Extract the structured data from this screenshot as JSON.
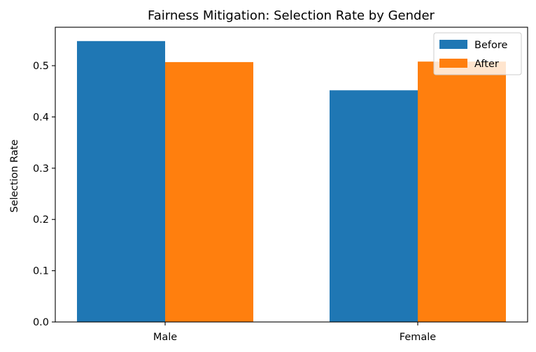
{
  "chart_data": {
    "type": "bar",
    "title": "Fairness Mitigation: Selection Rate by Gender",
    "xlabel": "",
    "ylabel": "Selection Rate",
    "categories": [
      "Male",
      "Female"
    ],
    "series": [
      {
        "name": "Before",
        "values": [
          0.548,
          0.452
        ],
        "color": "#1f77b4"
      },
      {
        "name": "After",
        "values": [
          0.507,
          0.508
        ],
        "color": "#ff7f0e"
      }
    ],
    "ylim": [
      0,
      0.575
    ],
    "yticks": [
      0.0,
      0.1,
      0.2,
      0.3,
      0.4,
      0.5
    ],
    "ytick_labels": [
      "0.0",
      "0.1",
      "0.2",
      "0.3",
      "0.4",
      "0.5"
    ],
    "grid": false,
    "legend_position": "top-right"
  }
}
